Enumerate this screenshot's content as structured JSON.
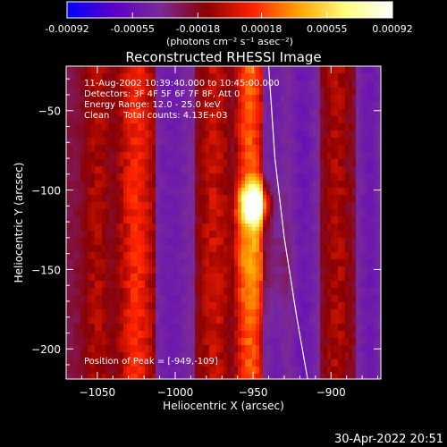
{
  "colorbar": {
    "ticks": [
      "-0.00092",
      "-0.00055",
      "-0.00018",
      "0.00018",
      "0.00055",
      "0.00092"
    ],
    "tick_values": [
      -0.00092,
      -0.00055,
      -0.00018,
      0.00018,
      0.00055,
      0.00092
    ],
    "range": [
      -0.00092,
      0.00092
    ],
    "unit_label": "(photons cm⁻² s⁻¹ asec⁻²)",
    "colors": [
      "#0000ff",
      "#5a00c8",
      "#7a2a9a",
      "#8a0000",
      "#ff2200",
      "#ffa500",
      "#ffff80",
      "#ffffff"
    ]
  },
  "plot": {
    "title": "Reconstructed RHESSI Image",
    "annotations": [
      "11-Aug-2002 10:39:40.000 to 10:45:00.000",
      "Detectors: 3F 4F 5F 6F 7F 8F, Att 0",
      "Energy Range: 12.0 - 25.0 keV",
      "Clean     Total counts: 4.13E+03"
    ],
    "peak_label": "Position of Peak = [-949,-109]",
    "footer_date": "30-Apr-2022 20:51"
  },
  "chart_data": {
    "type": "heatmap",
    "title": "Reconstructed RHESSI Image",
    "xlabel": "Heliocentric X (arcsec)",
    "ylabel": "Heliocentric Y (arcsec)",
    "xlim": [
      -1070,
      -868
    ],
    "ylim": [
      -219,
      -22
    ],
    "x_ticks": [
      -1050,
      -1000,
      -950,
      -900
    ],
    "x_tick_labels": [
      "−1050",
      "−1000",
      "−950",
      "−900"
    ],
    "y_ticks": [
      -50,
      -100,
      -150,
      -200
    ],
    "y_tick_labels": [
      "−50",
      "−100",
      "−150",
      "−200"
    ],
    "peak": {
      "x": -949,
      "y": -109
    },
    "bands": [
      {
        "x_center": -1050,
        "half_width": 10,
        "level": 0.45
      },
      {
        "x_center": -1025,
        "half_width": 13,
        "level": 0.55
      },
      {
        "x_center": -1002,
        "half_width": 12,
        "level": 0.12
      },
      {
        "x_center": -975,
        "half_width": 11,
        "level": 0.48
      },
      {
        "x_center": -952,
        "half_width": 10,
        "level": 0.62
      },
      {
        "x_center": -936,
        "half_width": 8,
        "level": 0.15
      },
      {
        "x_center": -918,
        "half_width": 9,
        "level": 0.08
      },
      {
        "x_center": -896,
        "half_width": 10,
        "level": 0.45
      },
      {
        "x_center": -875,
        "half_width": 8,
        "level": 0.1
      }
    ],
    "limb_curve": [
      {
        "x": -940,
        "y": -22
      },
      {
        "x": -936,
        "y": -80
      },
      {
        "x": -930,
        "y": -130
      },
      {
        "x": -922,
        "y": -180
      },
      {
        "x": -915,
        "y": -219
      }
    ]
  }
}
